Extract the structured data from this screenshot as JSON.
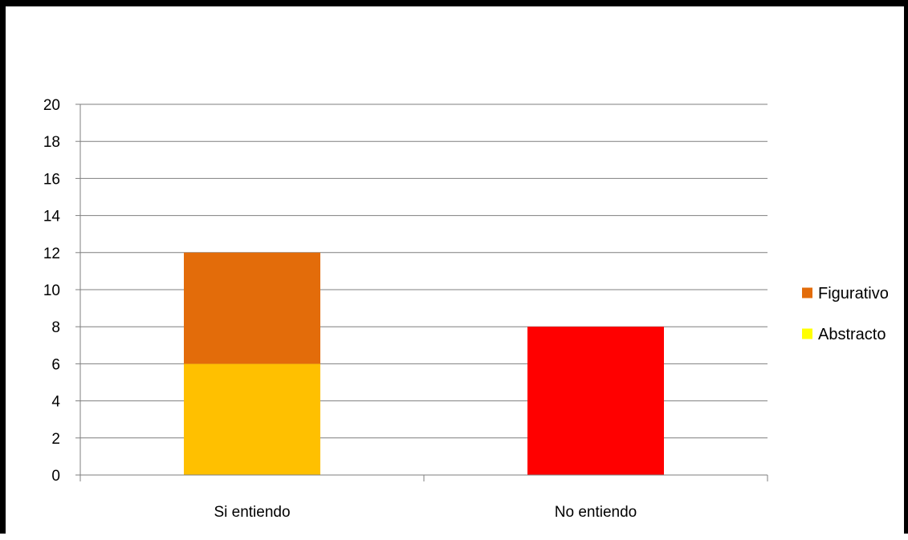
{
  "chart_data": {
    "type": "bar",
    "stacked": true,
    "categories": [
      "Si entiendo",
      "No entiendo"
    ],
    "ylim": [
      0,
      20
    ],
    "ytick_step": 2,
    "grid": true,
    "legend_position": "right",
    "segments": [
      {
        "category": "Si entiendo",
        "from": 0,
        "to": 6,
        "color": "#FFC000"
      },
      {
        "category": "Si entiendo",
        "from": 6,
        "to": 12,
        "color": "#E36C0A"
      },
      {
        "category": "No entiendo",
        "from": 0,
        "to": 8,
        "color": "#FF0000"
      }
    ],
    "legend": [
      {
        "label": "Figurativo",
        "color": "#E36C0A"
      },
      {
        "label": "Abstracto",
        "color": "#FFFF00"
      }
    ]
  }
}
